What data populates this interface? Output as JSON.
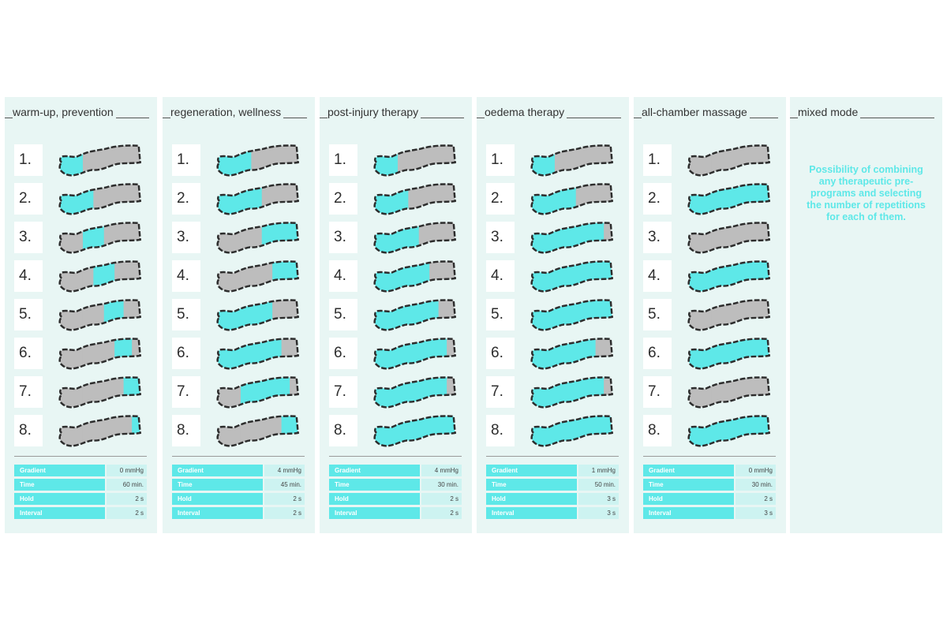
{
  "colors": {
    "panel_bg": "#e8f6f4",
    "active_chamber": "#5ee8e8",
    "inactive_chamber": "#bdbdbd",
    "outline": "#2d2d2d"
  },
  "icon": "leg-compression-sleeve-icon",
  "panels": [
    {
      "title": "warm-up, prevention",
      "steps": [
        {
          "label": "1.",
          "active": [
            1,
            2
          ]
        },
        {
          "label": "2.",
          "active": [
            1,
            2,
            3
          ]
        },
        {
          "label": "3.",
          "active": [
            3,
            4
          ]
        },
        {
          "label": "4.",
          "active": [
            4,
            5
          ]
        },
        {
          "label": "5.",
          "active": [
            5,
            6
          ]
        },
        {
          "label": "6.",
          "active": [
            6,
            7
          ]
        },
        {
          "label": "7.",
          "active": [
            7,
            8
          ]
        },
        {
          "label": "8.",
          "active": [
            8
          ]
        }
      ],
      "params": [
        {
          "label": "Gradient",
          "value": "0 mmHg"
        },
        {
          "label": "Time",
          "value": "60 min."
        },
        {
          "label": "Hold",
          "value": "2 s"
        },
        {
          "label": "Interval",
          "value": "2 s"
        }
      ]
    },
    {
      "title": "regeneration, wellness",
      "steps": [
        {
          "label": "1.",
          "active": [
            1,
            2,
            3
          ]
        },
        {
          "label": "2.",
          "active": [
            1,
            2,
            3,
            4
          ]
        },
        {
          "label": "3.",
          "active": [
            5,
            6,
            7,
            8
          ]
        },
        {
          "label": "4.",
          "active": [
            6,
            7,
            8
          ]
        },
        {
          "label": "5.",
          "active": [
            1,
            2,
            3,
            4,
            5
          ]
        },
        {
          "label": "6.",
          "active": [
            1,
            2,
            3,
            4,
            5,
            6
          ]
        },
        {
          "label": "7.",
          "active": [
            3,
            4,
            5,
            6,
            7
          ]
        },
        {
          "label": "8.",
          "active": [
            7,
            8
          ]
        }
      ],
      "params": [
        {
          "label": "Gradient",
          "value": "4 mmHg"
        },
        {
          "label": "Time",
          "value": "45 min."
        },
        {
          "label": "Hold",
          "value": "2 s"
        },
        {
          "label": "Interval",
          "value": "2 s"
        }
      ]
    },
    {
      "title": "post-injury therapy",
      "steps": [
        {
          "label": "1.",
          "active": [
            1,
            2
          ]
        },
        {
          "label": "2.",
          "active": [
            1,
            2,
            3
          ]
        },
        {
          "label": "3.",
          "active": [
            1,
            2,
            3,
            4
          ]
        },
        {
          "label": "4.",
          "active": [
            1,
            2,
            3,
            4,
            5
          ]
        },
        {
          "label": "5.",
          "active": [
            1,
            2,
            3,
            4,
            5,
            6
          ]
        },
        {
          "label": "6.",
          "active": [
            1,
            2,
            3,
            4,
            5,
            6,
            7
          ]
        },
        {
          "label": "7.",
          "active": [
            1,
            2,
            3,
            4,
            5,
            6,
            7
          ]
        },
        {
          "label": "8.",
          "active": [
            1,
            2,
            3,
            4,
            5,
            6,
            7,
            8
          ]
        }
      ],
      "params": [
        {
          "label": "Gradient",
          "value": "4 mmHg"
        },
        {
          "label": "Time",
          "value": "30 min."
        },
        {
          "label": "Hold",
          "value": "2 s"
        },
        {
          "label": "Interval",
          "value": "2 s"
        }
      ]
    },
    {
      "title": "oedema therapy",
      "steps": [
        {
          "label": "1.",
          "active": [
            1,
            2
          ]
        },
        {
          "label": "2.",
          "active": [
            1,
            2,
            3,
            4
          ]
        },
        {
          "label": "3.",
          "active": [
            1,
            2,
            3,
            4,
            5,
            6,
            7
          ]
        },
        {
          "label": "4.",
          "active": [
            1,
            2,
            3,
            4,
            5,
            6,
            7,
            8
          ]
        },
        {
          "label": "5.",
          "active": [
            1,
            2,
            3,
            4,
            5,
            6,
            7,
            8
          ]
        },
        {
          "label": "6.",
          "active": [
            1,
            2,
            3,
            4,
            5,
            6
          ]
        },
        {
          "label": "7.",
          "active": [
            1,
            2,
            3,
            4,
            5,
            6,
            7
          ]
        },
        {
          "label": "8.",
          "active": [
            1,
            2,
            3,
            4,
            5,
            6,
            7,
            8
          ]
        }
      ],
      "params": [
        {
          "label": "Gradient",
          "value": "1 mmHg"
        },
        {
          "label": "Time",
          "value": "50 min."
        },
        {
          "label": "Hold",
          "value": "3 s"
        },
        {
          "label": "Interval",
          "value": "3 s"
        }
      ]
    },
    {
      "title": "all-chamber massage",
      "steps": [
        {
          "label": "1.",
          "active": []
        },
        {
          "label": "2.",
          "active": [
            1,
            2,
            3,
            4,
            5,
            6,
            7,
            8
          ]
        },
        {
          "label": "3.",
          "active": []
        },
        {
          "label": "4.",
          "active": [
            1,
            2,
            3,
            4,
            5,
            6,
            7,
            8
          ]
        },
        {
          "label": "5.",
          "active": []
        },
        {
          "label": "6.",
          "active": [
            1,
            2,
            3,
            4,
            5,
            6,
            7,
            8
          ]
        },
        {
          "label": "7.",
          "active": []
        },
        {
          "label": "8.",
          "active": [
            1,
            2,
            3,
            4,
            5,
            6,
            7,
            8
          ]
        }
      ],
      "params": [
        {
          "label": "Gradient",
          "value": "0 mmHg"
        },
        {
          "label": "Time",
          "value": "30 min."
        },
        {
          "label": "Hold",
          "value": "2 s"
        },
        {
          "label": "Interval",
          "value": "3 s"
        }
      ]
    },
    {
      "title": "mixed mode",
      "note": "Possibility of combining any therapeutic pre-programs and selecting the number of repetitions for each of them."
    }
  ]
}
